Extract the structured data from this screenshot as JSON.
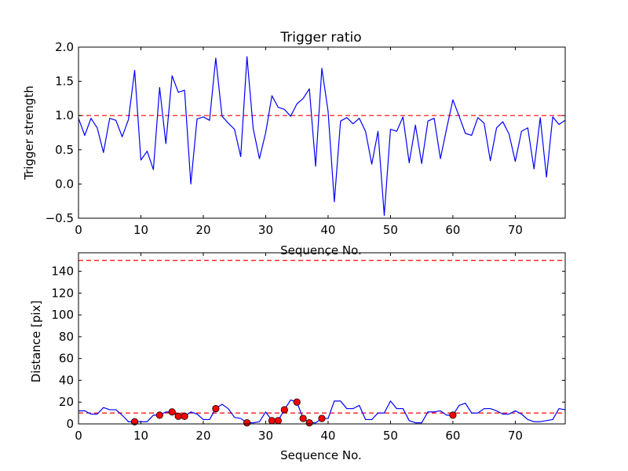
{
  "chart_data": [
    {
      "type": "line",
      "title": "Trigger ratio",
      "xlabel": "Sequence No.",
      "ylabel": "Trigger strength",
      "xlim": [
        0,
        78
      ],
      "ylim": [
        -0.5,
        2.0
      ],
      "xticks": [
        0,
        10,
        20,
        30,
        40,
        50,
        60,
        70
      ],
      "yticks": [
        -0.5,
        0.0,
        0.5,
        1.0,
        1.5,
        2.0
      ],
      "ytick_labels": [
        "−0.5",
        "0.0",
        "0.5",
        "1.0",
        "1.5",
        "2.0"
      ],
      "grid": false,
      "line_color": "#0000ff",
      "threshold": {
        "value": 1.0,
        "color": "#ff0000",
        "style": "dashed"
      },
      "series": [
        {
          "name": "trigger strength",
          "x": [
            0,
            1,
            2,
            3,
            4,
            5,
            6,
            7,
            8,
            9,
            10,
            11,
            12,
            13,
            14,
            15,
            16,
            17,
            18,
            19,
            20,
            21,
            22,
            23,
            24,
            25,
            26,
            27,
            28,
            29,
            30,
            31,
            32,
            33,
            34,
            35,
            36,
            37,
            38,
            39,
            40,
            41,
            42,
            43,
            44,
            45,
            46,
            47,
            48,
            49,
            50,
            51,
            52,
            53,
            54,
            55,
            56,
            57,
            58,
            59,
            60,
            61,
            62,
            63,
            64,
            65,
            66,
            67,
            68,
            69,
            70,
            71,
            72,
            73,
            74,
            75,
            76,
            77,
            78
          ],
          "values": [
            0.96,
            0.71,
            0.96,
            0.82,
            0.46,
            0.96,
            0.93,
            0.69,
            0.94,
            1.66,
            0.35,
            0.48,
            0.21,
            1.41,
            0.59,
            1.58,
            1.34,
            1.37,
            0.0,
            0.95,
            0.98,
            0.93,
            1.84,
            0.99,
            0.89,
            0.8,
            0.4,
            1.86,
            0.81,
            0.37,
            0.75,
            1.29,
            1.12,
            1.09,
            0.99,
            1.17,
            1.25,
            1.39,
            0.26,
            1.69,
            1.06,
            -0.26,
            0.92,
            0.97,
            0.88,
            0.96,
            0.77,
            0.29,
            0.77,
            -0.46,
            0.8,
            0.77,
            0.98,
            0.31,
            0.86,
            0.3,
            0.92,
            0.96,
            0.37,
            0.81,
            1.23,
            0.99,
            0.74,
            0.71,
            0.97,
            0.89,
            0.34,
            0.82,
            0.91,
            0.73,
            0.33,
            0.77,
            0.82,
            0.22,
            0.97,
            0.1,
            0.98,
            0.87,
            0.93
          ]
        }
      ]
    },
    {
      "type": "line",
      "title": "",
      "xlabel": "Sequence No.",
      "ylabel": "Distance [pix]",
      "xlim": [
        0,
        78
      ],
      "ylim": [
        0,
        157
      ],
      "xticks": [
        0,
        10,
        20,
        30,
        40,
        50,
        60,
        70
      ],
      "yticks": [
        0,
        20,
        40,
        60,
        80,
        100,
        120,
        140
      ],
      "grid": false,
      "line_color": "#0000ff",
      "thresholds": [
        {
          "value": 150,
          "color": "#ff0000",
          "style": "dashed"
        },
        {
          "value": 10,
          "color": "#ff0000",
          "style": "dashed"
        }
      ],
      "series": [
        {
          "name": "distance",
          "x": [
            0,
            1,
            2,
            3,
            4,
            5,
            6,
            7,
            8,
            9,
            10,
            11,
            12,
            13,
            14,
            15,
            16,
            17,
            18,
            19,
            20,
            21,
            22,
            23,
            24,
            25,
            26,
            27,
            28,
            29,
            30,
            31,
            32,
            33,
            34,
            35,
            36,
            37,
            38,
            39,
            40,
            41,
            42,
            43,
            44,
            45,
            46,
            47,
            48,
            49,
            50,
            51,
            52,
            53,
            54,
            55,
            56,
            57,
            58,
            59,
            60,
            61,
            62,
            63,
            64,
            65,
            66,
            67,
            68,
            69,
            70,
            71,
            72,
            73,
            74,
            75,
            76,
            77,
            78
          ],
          "values": [
            12,
            12,
            9,
            9,
            15,
            13,
            13,
            8,
            2,
            2,
            2,
            2,
            8,
            8,
            11,
            11,
            7,
            7,
            11,
            9,
            4,
            4,
            14,
            18,
            14,
            6,
            5,
            1,
            1,
            2,
            11,
            3,
            3,
            13,
            22,
            20,
            5,
            1,
            1,
            5,
            5,
            21,
            21,
            14,
            14,
            17,
            4,
            4,
            10,
            10,
            21,
            14,
            14,
            3,
            1,
            1,
            11,
            11,
            12,
            8,
            8,
            17,
            19,
            10,
            10,
            14,
            14,
            12,
            9,
            9,
            12,
            9,
            4,
            2,
            2,
            3,
            4,
            14,
            13
          ]
        },
        {
          "name": "highlighted points",
          "marker": "circle",
          "color": "#ff0000",
          "x": [
            9,
            13,
            15,
            16,
            17,
            22,
            27,
            31,
            32,
            33,
            35,
            36,
            37,
            39,
            60
          ],
          "values": [
            2,
            8,
            11,
            7,
            7,
            14,
            1,
            3,
            3,
            13,
            20,
            5,
            1,
            5,
            8
          ]
        }
      ]
    }
  ]
}
